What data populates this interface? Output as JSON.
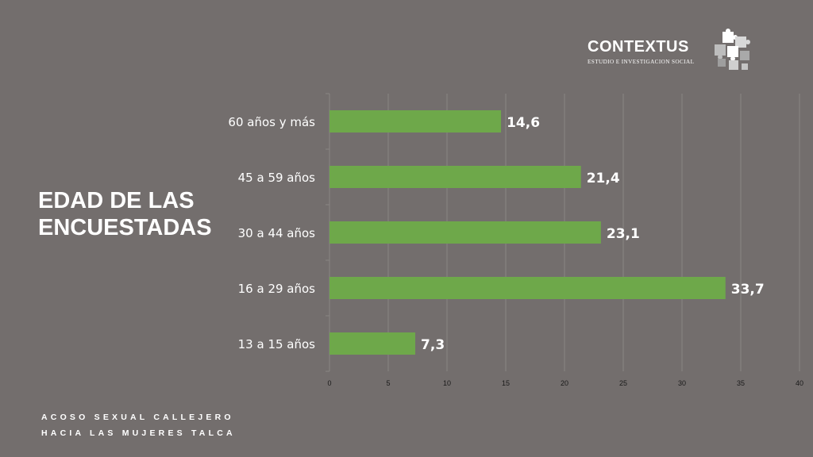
{
  "title_lines": [
    "EDAD DE LAS",
    "ENCUESTADAS"
  ],
  "subtitle_lines": [
    "ACOSO SEXUAL CALLEJERO",
    "HACIA LAS MUJERES TALCA"
  ],
  "logo": {
    "name": "CONTEXTUS",
    "tagline": "ESTUDIO E INVESTIGACION SOCIAL",
    "icon": "puzzle-pieces-icon"
  },
  "colors": {
    "background": "#736e6d",
    "bar": "#6ea84a",
    "text": "#ffffff",
    "tick_text": "#1a1a1a",
    "grid": "#8a8584"
  },
  "chart_data": {
    "type": "bar",
    "orientation": "horizontal",
    "categories": [
      "60 años y más",
      "45 a 59 años",
      "30 a 44 años",
      "16 a 29 años",
      "13 a 15 años"
    ],
    "values": [
      14.6,
      21.4,
      23.1,
      33.7,
      7.3
    ],
    "value_labels": [
      "14,6",
      "21,4",
      "23,1",
      "33,7",
      "7,3"
    ],
    "xlim": [
      0,
      40
    ],
    "xticks": [
      0,
      5,
      10,
      15,
      20,
      25,
      30,
      35,
      40
    ],
    "grid": true,
    "legend": "none"
  }
}
